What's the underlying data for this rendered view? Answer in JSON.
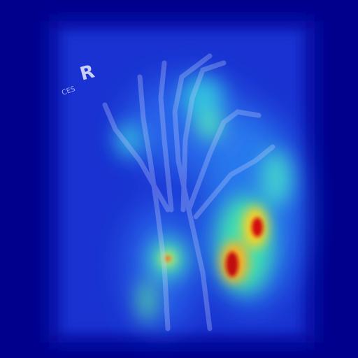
{
  "image": {
    "marker": "R",
    "marker_caption": "CES"
  }
}
